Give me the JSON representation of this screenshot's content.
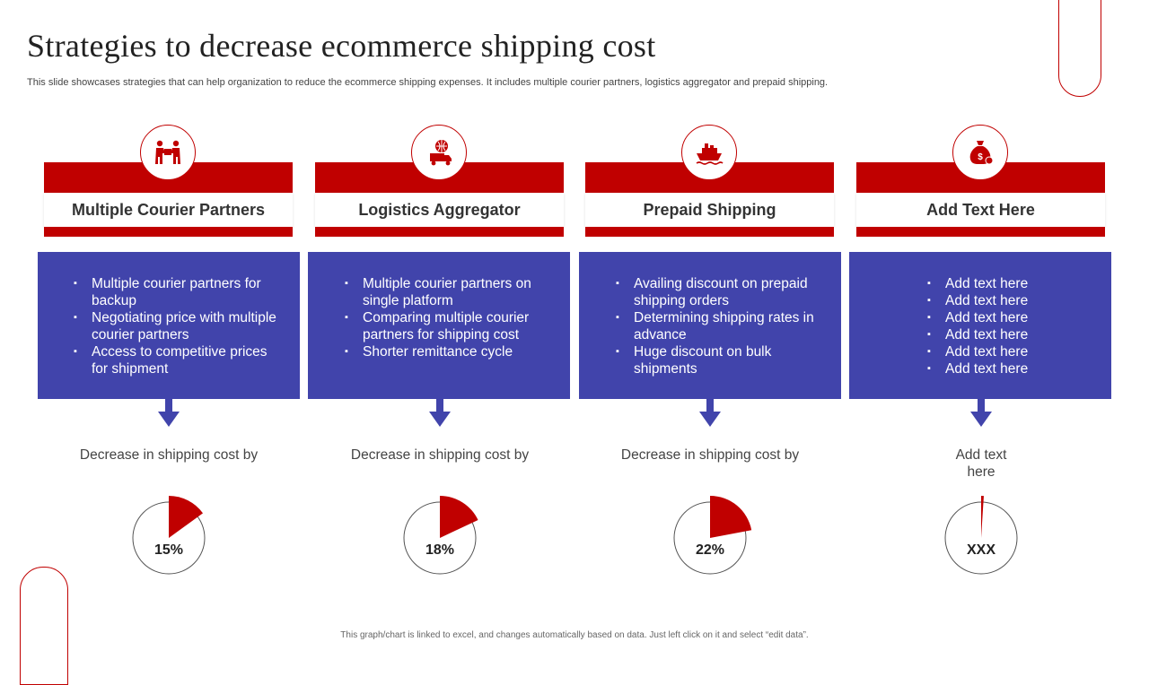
{
  "title": "Strategies to decrease ecommerce shipping cost",
  "subtitle": "This slide showcases strategies that can help organization to reduce the ecommerce shipping expenses. It includes multiple courier partners, logistics aggregator and prepaid shipping.",
  "footer": "This graph/chart is linked to excel, and changes automatically based on data. Just left click on it and select “edit data”.",
  "colors": {
    "accent": "#c00000",
    "box": "#4144ab"
  },
  "columns": [
    {
      "label": "Multiple Courier Partners",
      "icon": "courier-handoff-icon",
      "bullets": [
        "Multiple courier partners for backup",
        "Negotiating price with multiple courier partners",
        "Access to competitive prices for shipment"
      ],
      "decrease_text": "Decrease in shipping cost by",
      "pie_label": "15%",
      "pie_value": 15
    },
    {
      "label": "Logistics Aggregator",
      "icon": "globe-truck-icon",
      "bullets": [
        "Multiple courier partners on single platform",
        "Comparing multiple courier partners for shipping cost",
        "Shorter remittance cycle"
      ],
      "decrease_text": "Decrease in shipping cost by",
      "pie_label": "18%",
      "pie_value": 18
    },
    {
      "label": "Prepaid Shipping",
      "icon": "cargo-ship-icon",
      "bullets": [
        "Availing discount on prepaid shipping orders",
        "Determining shipping rates in advance",
        "Huge discount on bulk shipments"
      ],
      "decrease_text": "Decrease in shipping cost by",
      "pie_label": "22%",
      "pie_value": 22
    },
    {
      "label": "Add Text Here",
      "icon": "money-bag-icon",
      "bullets": [
        "Add text here",
        "Add text here",
        "Add text here",
        "Add text here",
        "Add text here",
        "Add text here"
      ],
      "decrease_text": "Add text here",
      "pie_label": "XXX",
      "pie_value": 1
    }
  ]
}
